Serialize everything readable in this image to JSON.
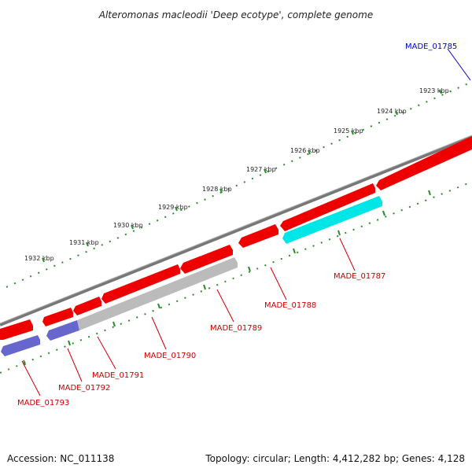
{
  "title": "Alteromonas macleodii 'Deep ecotype', complete genome",
  "colors": {
    "forward_gene": "#ff0000",
    "hypothetical_gene": "#6666cc",
    "pseudo_gene": "#bbbbbb",
    "rna_gene": "#00e5e5",
    "backbone": "#777777",
    "ticks": "#2e8b2e",
    "label_red": "#cc0000",
    "label_blue": "#0000cc"
  },
  "tick_labels": [
    "1923 kbp",
    "1924 kbp",
    "1925 kbp",
    "1926 kbp",
    "1927 kbp",
    "1928 kbp",
    "1929 kbp",
    "1930 kbp",
    "1931 kbp",
    "1932 kbp"
  ],
  "genes": [
    {
      "label": "MADE_01785",
      "color": "blue"
    },
    {
      "label": "MADE_01787",
      "color": "red"
    },
    {
      "label": "MADE_01788",
      "color": "red"
    },
    {
      "label": "MADE_01789",
      "color": "red"
    },
    {
      "label": "MADE_01790",
      "color": "red"
    },
    {
      "label": "MADE_01791",
      "color": "red"
    },
    {
      "label": "MADE_01792",
      "color": "red"
    },
    {
      "label": "MADE_01793",
      "color": "red"
    }
  ],
  "footer": {
    "accession": "Accession: NC_011138",
    "summary": "Topology: circular; Length: 4,412,282 bp; Genes: 4,128"
  }
}
